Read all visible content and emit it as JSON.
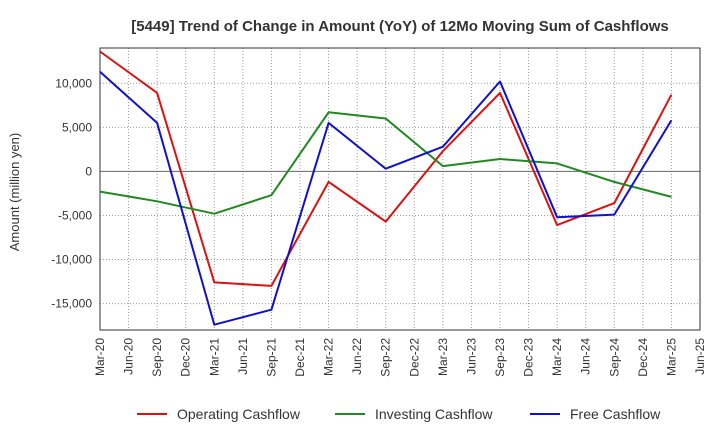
{
  "chart_data": {
    "type": "line",
    "title": "[5449]  Trend of Change in Amount (YoY) of 12Mo Moving Sum of Cashflows",
    "xlabel": "",
    "ylabel": "Amount (million yen)",
    "categories": [
      "Mar-20",
      "Jun-20",
      "Sep-20",
      "Dec-20",
      "Mar-21",
      "Jun-21",
      "Sep-21",
      "Dec-21",
      "Mar-22",
      "Jun-22",
      "Sep-22",
      "Dec-22",
      "Mar-23",
      "Jun-23",
      "Sep-23",
      "Dec-23",
      "Mar-24",
      "Jun-24",
      "Sep-24",
      "Dec-24",
      "Mar-25",
      "Jun-25"
    ],
    "ylim": [
      -18000,
      14000
    ],
    "yticks": [
      -15000,
      -10000,
      -5000,
      0,
      5000,
      10000
    ],
    "ytick_labels": [
      "-15,000",
      "-10,000",
      "-5,000",
      "0",
      "5,000",
      "10,000"
    ],
    "grid": true,
    "legend_position": "bottom",
    "series": [
      {
        "name": "Operating Cashflow",
        "color": "#dd1111",
        "values": [
          13600,
          null,
          8900,
          null,
          -12600,
          null,
          -13000,
          null,
          -1200,
          null,
          -5700,
          null,
          2300,
          null,
          8900,
          null,
          -6100,
          null,
          -3600,
          null,
          8700,
          null
        ]
      },
      {
        "name": "Investing Cashflow",
        "color": "#228822",
        "values": [
          -2300,
          null,
          -3400,
          null,
          -4800,
          null,
          -2700,
          null,
          6700,
          null,
          6000,
          null,
          600,
          null,
          1400,
          null,
          900,
          null,
          -1200,
          null,
          -2900,
          null
        ]
      },
      {
        "name": "Free Cashflow",
        "color": "#1111cc",
        "values": [
          11300,
          null,
          5500,
          null,
          -17400,
          null,
          -15700,
          null,
          5500,
          null,
          300,
          null,
          2800,
          null,
          10200,
          null,
          -5200,
          null,
          -4900,
          null,
          5800,
          null
        ]
      }
    ]
  }
}
